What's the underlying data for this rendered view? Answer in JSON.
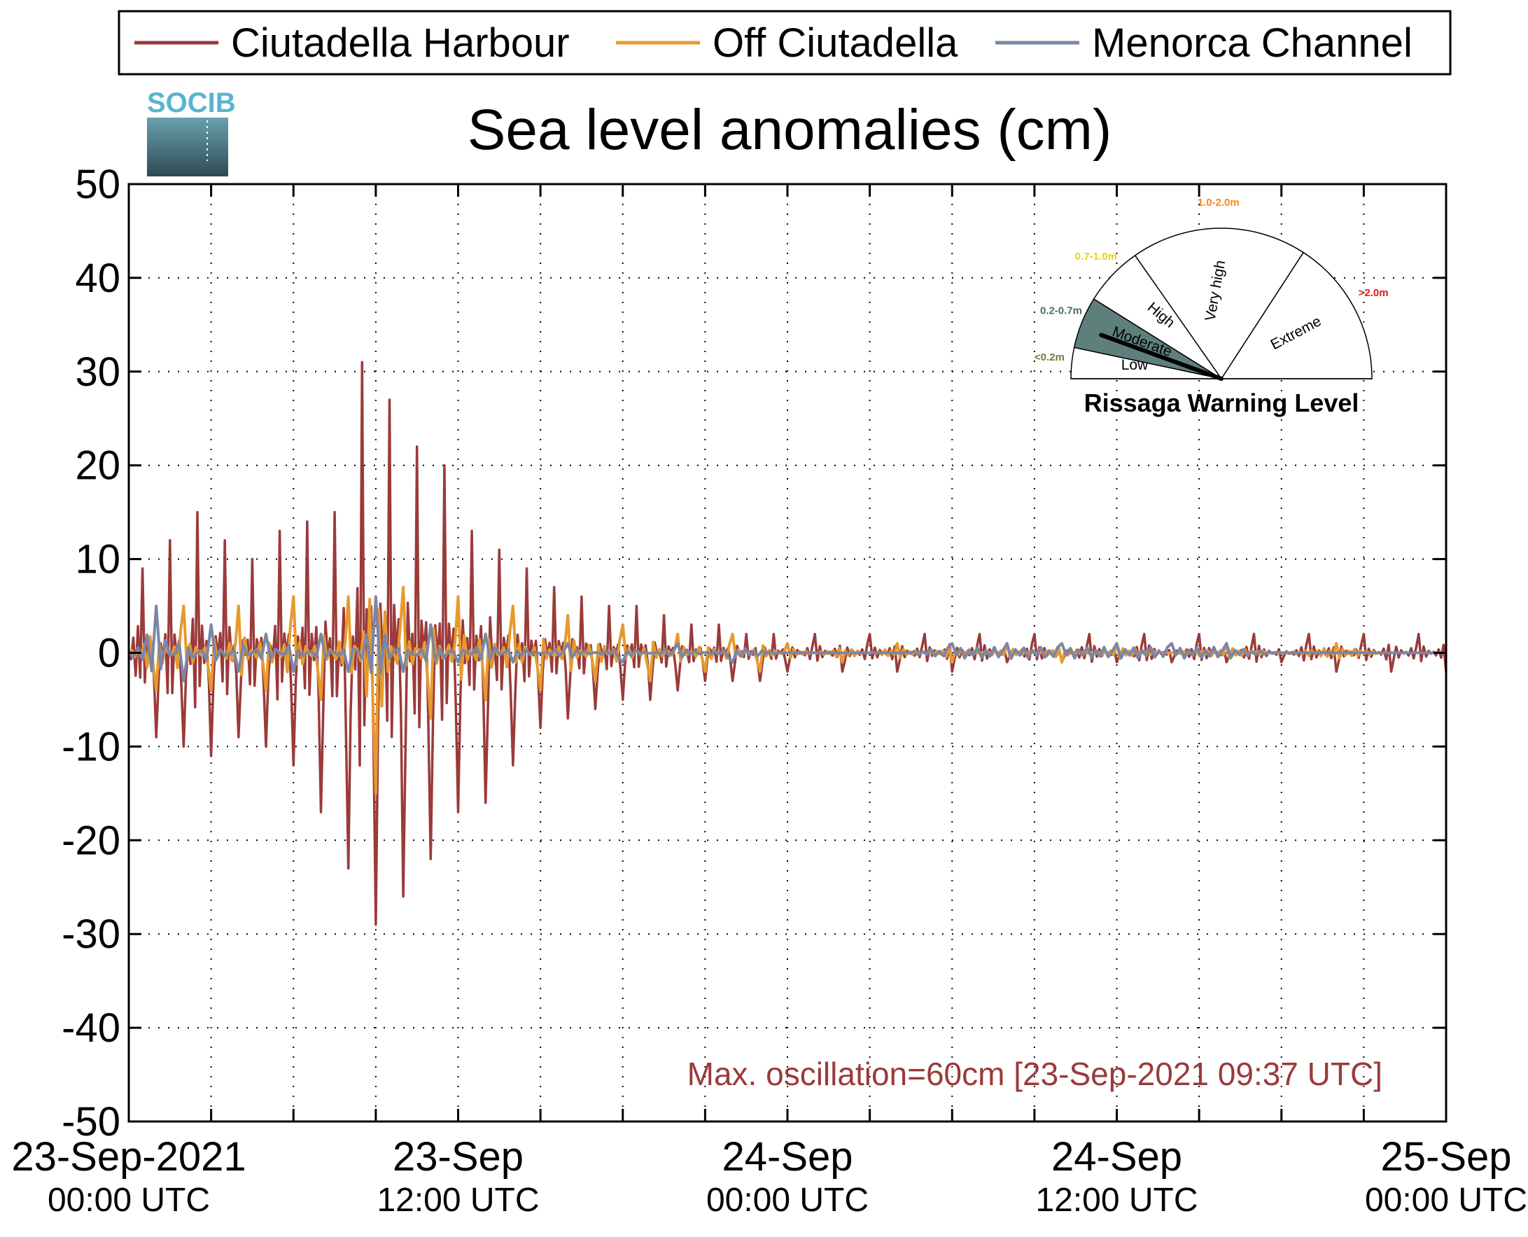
{
  "chart_data": {
    "type": "line",
    "title": "Sea level anomalies (cm)",
    "xlabel": "",
    "ylabel": "",
    "ylim": [
      -50,
      50
    ],
    "yticks": [
      "50",
      "40",
      "30",
      "20",
      "10",
      "0",
      "-10",
      "-20",
      "-30",
      "-40",
      "-50"
    ],
    "xlim_hours": [
      0,
      48
    ],
    "x_unit": "hours from 23-Sep-2021 00:00 UTC",
    "xticks": [
      {
        "line1": "23-Sep-2021",
        "line2": "00:00 UTC"
      },
      {
        "line1": "23-Sep",
        "line2": "12:00 UTC"
      },
      {
        "line1": "24-Sep",
        "line2": "00:00 UTC"
      },
      {
        "line1": "24-Sep",
        "line2": "12:00 UTC"
      },
      {
        "line1": "25-Sep",
        "line2": "00:00 UTC"
      }
    ],
    "grid": true,
    "legend_position": "top",
    "series": [
      {
        "name": "Ciutadella Harbour",
        "color": "#9b3a3a",
        "x": [
          0,
          0.5,
          1,
          1.5,
          2,
          2.5,
          3,
          3.5,
          4,
          4.5,
          5,
          5.5,
          6,
          6.5,
          7,
          7.5,
          8,
          8.5,
          9,
          9.5,
          10,
          10.5,
          11,
          11.5,
          12,
          12.5,
          13,
          13.5,
          14,
          14.5,
          15,
          15.5,
          16,
          16.5,
          17,
          17.5,
          18,
          18.5,
          19,
          19.5,
          20,
          20.5,
          21,
          21.5,
          22,
          22.5,
          23,
          23.5,
          24,
          25,
          26,
          27,
          28,
          29,
          30,
          31,
          32,
          33,
          34,
          35,
          36,
          37,
          38,
          39,
          40,
          41,
          42,
          43,
          44,
          45,
          46,
          47,
          48
        ],
        "y": [
          0,
          9,
          -9,
          12,
          -10,
          15,
          -11,
          12,
          -9,
          10,
          -10,
          13,
          -12,
          14,
          -17,
          15,
          -23,
          31,
          -29,
          27,
          -26,
          22,
          -22,
          20,
          -17,
          13,
          -16,
          11,
          -12,
          9,
          -8,
          7,
          -7,
          6,
          -6,
          5,
          -5,
          5,
          -5,
          4,
          -4,
          3,
          -3,
          3,
          -3,
          2,
          -3,
          2,
          -2,
          2,
          -2,
          2,
          -2,
          2,
          -2,
          2,
          -1,
          2,
          -1,
          2,
          -1,
          2,
          -1,
          2,
          -1,
          2,
          -1,
          2,
          -2,
          2,
          -2,
          2,
          -2
        ]
      },
      {
        "name": "Off Ciutadella",
        "color": "#e69a2e",
        "x": [
          0,
          1,
          2,
          3,
          4,
          5,
          6,
          7,
          8,
          9,
          10,
          11,
          12,
          13,
          14,
          15,
          16,
          17,
          18,
          19,
          20,
          21,
          22,
          23,
          24,
          26,
          28,
          30,
          32,
          34,
          36,
          38,
          40,
          42,
          44,
          46,
          48
        ],
        "y": [
          0,
          -4,
          5,
          -4,
          5,
          -4,
          6,
          -5,
          6,
          -15,
          7,
          -7,
          6,
          -5,
          5,
          -4,
          4,
          -3,
          3,
          -3,
          2,
          -2,
          2,
          -2,
          1,
          -1,
          1,
          -1,
          1,
          -1,
          1,
          0,
          1,
          0,
          1,
          0,
          0
        ]
      },
      {
        "name": "Menorca Channel",
        "color": "#7a86a8",
        "x": [
          0,
          1,
          2,
          3,
          4,
          5,
          6,
          7,
          8,
          9,
          10,
          11,
          12,
          13,
          14,
          16,
          18,
          20,
          22,
          24,
          26,
          28,
          30,
          32,
          34,
          36,
          38,
          40,
          42,
          44,
          46,
          48
        ],
        "y": [
          0,
          5,
          -3,
          3,
          -2,
          2,
          -2,
          2,
          -2,
          6,
          -2,
          3,
          -1,
          2,
          -1,
          1,
          -1,
          1,
          -1,
          0,
          0,
          0,
          1,
          1,
          1,
          1,
          1,
          1,
          0,
          0,
          0,
          0
        ]
      }
    ],
    "annotation": "Max. oscillation=60cm [23-Sep-2021 09:37 UTC]",
    "annotation_color": "#9b3a3a"
  },
  "logo": {
    "text": "SOCIB"
  },
  "gauge": {
    "title": "Rissaga Warning Level",
    "level": "Moderate",
    "active_color": "#5f7f7d",
    "segments": [
      {
        "label": "Low",
        "range": "<0.2m",
        "range_color": "#6b7f3a"
      },
      {
        "label": "Moderate",
        "range": "0.2-0.7m",
        "range_color": "#4d6b6a"
      },
      {
        "label": "High",
        "range": "0.7-1.0m",
        "range_color": "#e5d21a"
      },
      {
        "label": "Very high",
        "range": "1.0-2.0m",
        "range_color": "#f08a1c"
      },
      {
        "label": "Extreme",
        "range": ">2.0m",
        "range_color": "#e21a1a"
      }
    ]
  }
}
